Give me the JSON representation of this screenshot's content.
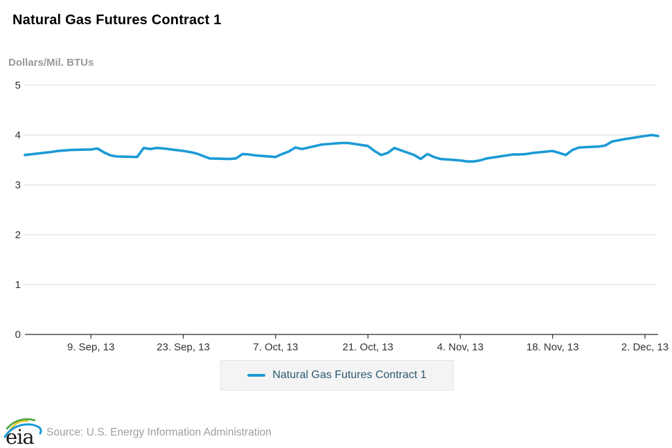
{
  "header": {
    "title": "Natural Gas Futures Contract 1",
    "unit_label": "Dollars/Mil. BTUs"
  },
  "legend": {
    "label": "Natural Gas Futures Contract 1"
  },
  "footer": {
    "logo_text": "eia",
    "source": "Source: U.S. Energy Information Administration"
  },
  "colors": {
    "line": "#1b9ad6",
    "grid": "#d9d9d9",
    "axis": "#2b2b2b",
    "tick_text": "#333333",
    "unit_text": "#999999",
    "legend_text": "#2b5971",
    "legend_bg": "#f4f4f4",
    "legend_border": "#e3e3e3",
    "source_text": "#9f9f9f",
    "logo_green": "#4ea73c",
    "logo_yellow": "#e8c723",
    "logo_blue": "#1b9ad6"
  },
  "chart_data": {
    "type": "line",
    "title": "Natural Gas Futures Contract 1",
    "ylabel": "Dollars/Mil. BTUs",
    "xlabel": "",
    "ylim": [
      0,
      5
    ],
    "y_ticks": [
      0,
      1,
      2,
      3,
      4,
      5
    ],
    "grid": "horizontal-only",
    "legend_position": "bottom-center",
    "x_ticks": [
      {
        "date": "2013-09-09",
        "label": "9. Sep, 13"
      },
      {
        "date": "2013-09-23",
        "label": "23. Sep, 13"
      },
      {
        "date": "2013-10-07",
        "label": "7. Oct, 13"
      },
      {
        "date": "2013-10-21",
        "label": "21. Oct, 13"
      },
      {
        "date": "2013-11-04",
        "label": "4. Nov, 13"
      },
      {
        "date": "2013-11-18",
        "label": "18. Nov, 13"
      },
      {
        "date": "2013-12-02",
        "label": "2. Dec, 13"
      }
    ],
    "x_range": [
      "2013-08-30",
      "2013-12-04"
    ],
    "series": [
      {
        "name": "Natural Gas Futures Contract 1",
        "points": [
          [
            "2013-08-30",
            3.6
          ],
          [
            "2013-09-03",
            3.66
          ],
          [
            "2013-09-04",
            3.68
          ],
          [
            "2013-09-05",
            3.69
          ],
          [
            "2013-09-06",
            3.7
          ],
          [
            "2013-09-09",
            3.71
          ],
          [
            "2013-09-10",
            3.73
          ],
          [
            "2013-09-11",
            3.65
          ],
          [
            "2013-09-12",
            3.59
          ],
          [
            "2013-09-13",
            3.57
          ],
          [
            "2013-09-16",
            3.56
          ],
          [
            "2013-09-17",
            3.74
          ],
          [
            "2013-09-18",
            3.72
          ],
          [
            "2013-09-19",
            3.74
          ],
          [
            "2013-09-20",
            3.73
          ],
          [
            "2013-09-23",
            3.68
          ],
          [
            "2013-09-24",
            3.66
          ],
          [
            "2013-09-25",
            3.63
          ],
          [
            "2013-09-26",
            3.58
          ],
          [
            "2013-09-27",
            3.53
          ],
          [
            "2013-09-30",
            3.52
          ],
          [
            "2013-10-01",
            3.53
          ],
          [
            "2013-10-02",
            3.62
          ],
          [
            "2013-10-03",
            3.61
          ],
          [
            "2013-10-04",
            3.59
          ],
          [
            "2013-10-07",
            3.56
          ],
          [
            "2013-10-08",
            3.62
          ],
          [
            "2013-10-09",
            3.67
          ],
          [
            "2013-10-10",
            3.75
          ],
          [
            "2013-10-11",
            3.72
          ],
          [
            "2013-10-14",
            3.81
          ],
          [
            "2013-10-15",
            3.82
          ],
          [
            "2013-10-16",
            3.83
          ],
          [
            "2013-10-17",
            3.84
          ],
          [
            "2013-10-18",
            3.84
          ],
          [
            "2013-10-21",
            3.78
          ],
          [
            "2013-10-22",
            3.68
          ],
          [
            "2013-10-23",
            3.6
          ],
          [
            "2013-10-24",
            3.64
          ],
          [
            "2013-10-25",
            3.74
          ],
          [
            "2013-10-28",
            3.6
          ],
          [
            "2013-10-29",
            3.52
          ],
          [
            "2013-10-30",
            3.62
          ],
          [
            "2013-10-31",
            3.56
          ],
          [
            "2013-11-01",
            3.52
          ],
          [
            "2013-11-04",
            3.49
          ],
          [
            "2013-11-05",
            3.47
          ],
          [
            "2013-11-06",
            3.47
          ],
          [
            "2013-11-07",
            3.49
          ],
          [
            "2013-11-08",
            3.53
          ],
          [
            "2013-11-11",
            3.59
          ],
          [
            "2013-11-12",
            3.61
          ],
          [
            "2013-11-13",
            3.61
          ],
          [
            "2013-11-14",
            3.62
          ],
          [
            "2013-11-15",
            3.64
          ],
          [
            "2013-11-18",
            3.68
          ],
          [
            "2013-11-19",
            3.64
          ],
          [
            "2013-11-20",
            3.6
          ],
          [
            "2013-11-21",
            3.7
          ],
          [
            "2013-11-22",
            3.75
          ],
          [
            "2013-11-25",
            3.77
          ],
          [
            "2013-11-26",
            3.79
          ],
          [
            "2013-11-27",
            3.87
          ],
          [
            "2013-11-29",
            3.92
          ],
          [
            "2013-12-02",
            3.98
          ],
          [
            "2013-12-03",
            4.0
          ],
          [
            "2013-12-04",
            3.98
          ]
        ]
      }
    ]
  }
}
